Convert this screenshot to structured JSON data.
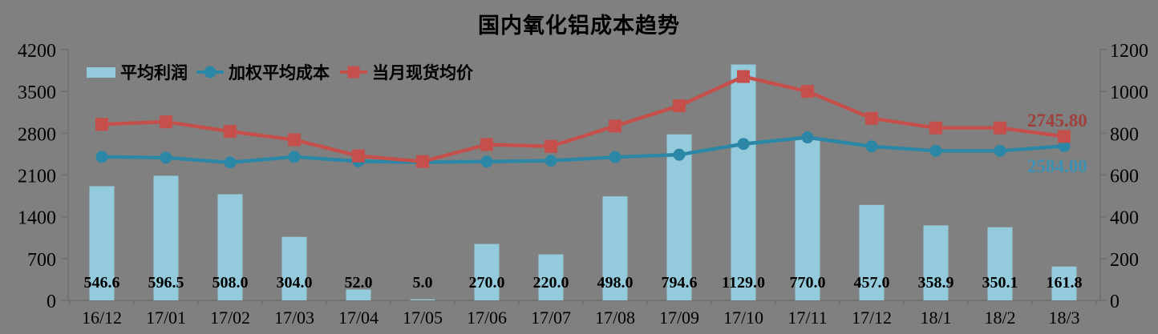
{
  "chart_data": {
    "type": "bar-line-combo",
    "title": "国内氧化铝成本趋势",
    "background_color": "#808080",
    "axis_color": "#6f6f6f",
    "categories": [
      "16/12",
      "17/01",
      "17/02",
      "17/03",
      "17/04",
      "17/05",
      "17/06",
      "17/07",
      "17/08",
      "17/09",
      "17/10",
      "17/11",
      "17/12",
      "18/1",
      "18/2",
      "18/3"
    ],
    "series": [
      {
        "name": "平均利润",
        "type": "bar",
        "axis": "right",
        "color": "#93cbdc",
        "values": [
          546.6,
          596.5,
          508.0,
          304.0,
          52.0,
          5.0,
          270.0,
          220.0,
          498.0,
          794.6,
          1129.0,
          770.0,
          457.0,
          358.9,
          350.1,
          161.8
        ],
        "labels": [
          "546.6",
          "596.5",
          "508.0",
          "304.0",
          "52.0",
          "5.0",
          "270.0",
          "220.0",
          "498.0",
          "794.6",
          "1129.0",
          "770.0",
          "457.0",
          "358.9",
          "350.1",
          "161.8"
        ]
      },
      {
        "name": "加权平均成本",
        "type": "line",
        "axis": "left",
        "marker": "circle",
        "color": "#2b87a5",
        "values": [
          2405,
          2390,
          2310,
          2405,
          2330,
          2315,
          2325,
          2340,
          2400,
          2440,
          2620,
          2730,
          2580,
          2505,
          2505,
          2584.0
        ]
      },
      {
        "name": "当月现货均价",
        "type": "line",
        "axis": "left",
        "marker": "square",
        "color": "#c5504b",
        "values": [
          2950,
          2990,
          2830,
          2690,
          2420,
          2325,
          2610,
          2580,
          2920,
          3260,
          3750,
          3500,
          3050,
          2890,
          2890,
          2745.8
        ]
      }
    ],
    "left_axis": {
      "min": 0,
      "max": 4200,
      "step": 700,
      "tick_labels": [
        "0",
        "700",
        "1400",
        "2100",
        "2800",
        "3500",
        "4200"
      ]
    },
    "right_axis": {
      "min": 0,
      "max": 1200,
      "step": 200,
      "tick_labels": [
        "0",
        "200",
        "400",
        "600",
        "800",
        "1000",
        "1200"
      ]
    },
    "grid": "off",
    "legend_position": "top-left-inside",
    "end_labels": [
      {
        "text": "2745.80",
        "color": "#9e413e",
        "series": "当月现货均价"
      },
      {
        "text": "2584.00",
        "color": "#3a91b3",
        "series": "加权平均成本"
      }
    ]
  }
}
